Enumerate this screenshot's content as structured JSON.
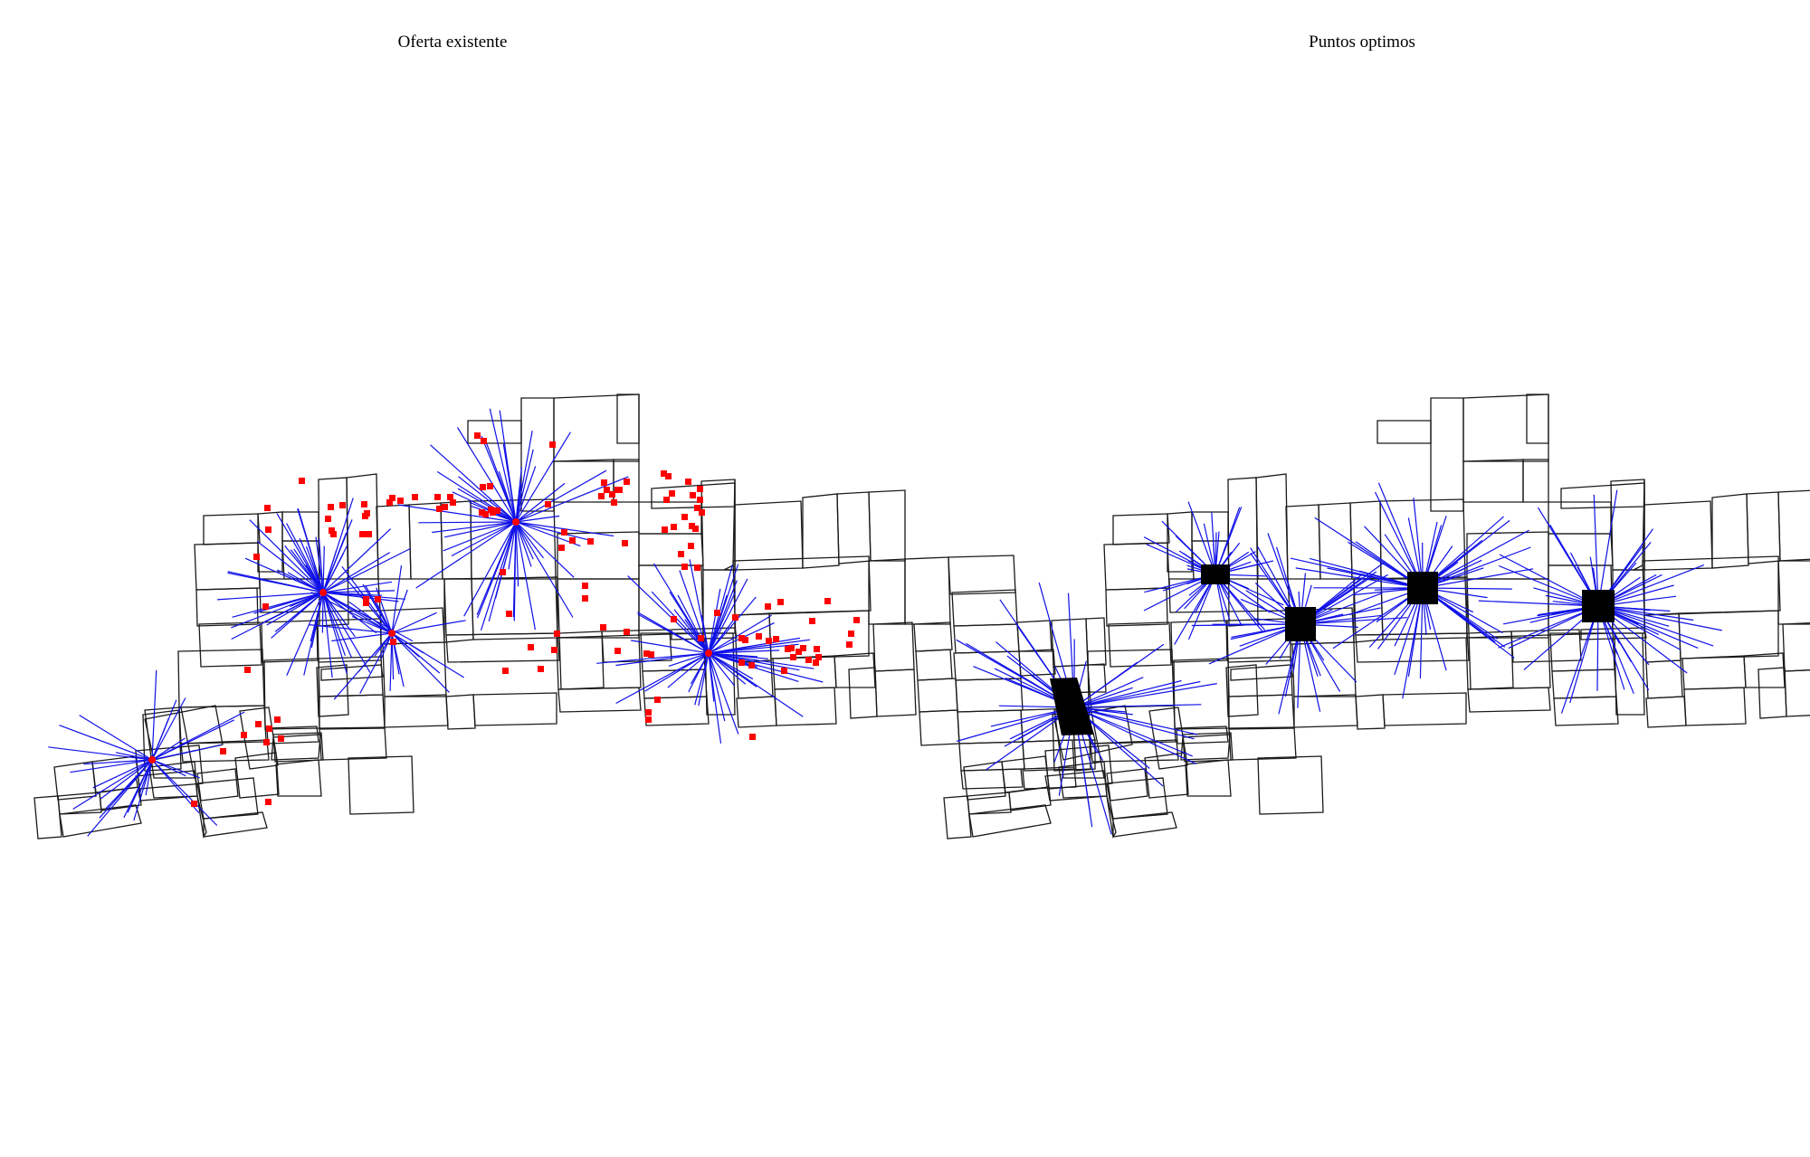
{
  "panels": [
    {
      "title": "Oferta existente"
    },
    {
      "title": "Puntos optimos"
    }
  ],
  "colors": {
    "background": "#ffffff",
    "block_outline": "#1a1a1a",
    "assignment_lines": "#1010e8",
    "existing_supply_points": "#ff0000",
    "optimal_points": "#000000"
  }
}
